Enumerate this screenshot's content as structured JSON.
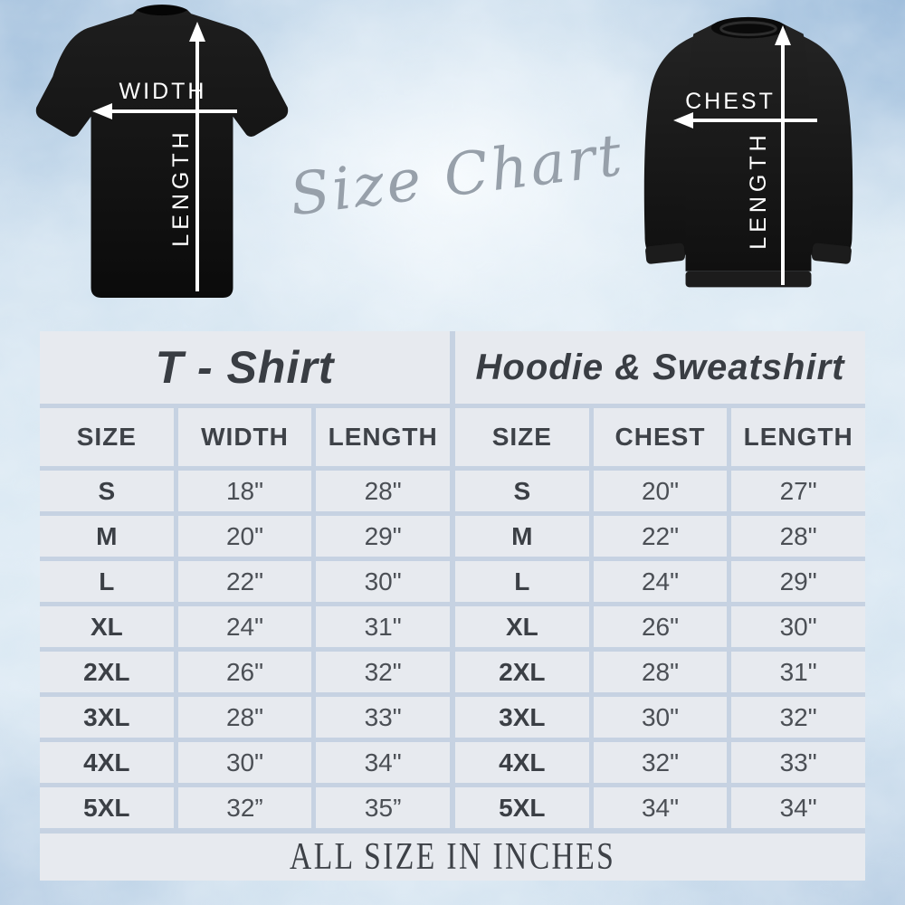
{
  "script_title": "Size Chart",
  "footer_note": "ALL SIZE IN INCHES",
  "diagrams": {
    "tshirt": {
      "garment": "t-shirt",
      "horizontal_label": "WIDTH",
      "vertical_label": "LENGTH"
    },
    "sweatshirt": {
      "garment": "sweatshirt",
      "horizontal_label": "CHEST",
      "vertical_label": "LENGTH"
    }
  },
  "chart_data": [
    {
      "type": "table",
      "title": "T - Shirt",
      "columns": [
        "SIZE",
        "WIDTH",
        "LENGTH"
      ],
      "rows": [
        [
          "S",
          "18\"",
          "28\""
        ],
        [
          "M",
          "20\"",
          "29\""
        ],
        [
          "L",
          "22\"",
          "30\""
        ],
        [
          "XL",
          "24\"",
          "31\""
        ],
        [
          "2XL",
          "26\"",
          "32\""
        ],
        [
          "3XL",
          "28\"",
          "33\""
        ],
        [
          "4XL",
          "30\"",
          "34\""
        ],
        [
          "5XL",
          "32”",
          "35”"
        ]
      ]
    },
    {
      "type": "table",
      "title": "Hoodie & Sweatshirt",
      "columns": [
        "SIZE",
        "CHEST",
        "LENGTH"
      ],
      "rows": [
        [
          "S",
          "20\"",
          "27\""
        ],
        [
          "M",
          "22\"",
          "28\""
        ],
        [
          "L",
          "24\"",
          "29\""
        ],
        [
          "XL",
          "26\"",
          "30\""
        ],
        [
          "2XL",
          "28\"",
          "31\""
        ],
        [
          "3XL",
          "30\"",
          "32\""
        ],
        [
          "4XL",
          "32\"",
          "33\""
        ],
        [
          "5XL",
          "34\"",
          "34\""
        ]
      ]
    }
  ],
  "colors": {
    "cell_bg": "#e7eaef",
    "grid_line": "#c6d2e2",
    "heading_text": "#393d43",
    "value_text": "#4b4f55",
    "script_gray": "#97a0aa",
    "arrow_white": "#ffffff",
    "garment_black": "#121212",
    "background_blue": "#cfe0ee"
  }
}
